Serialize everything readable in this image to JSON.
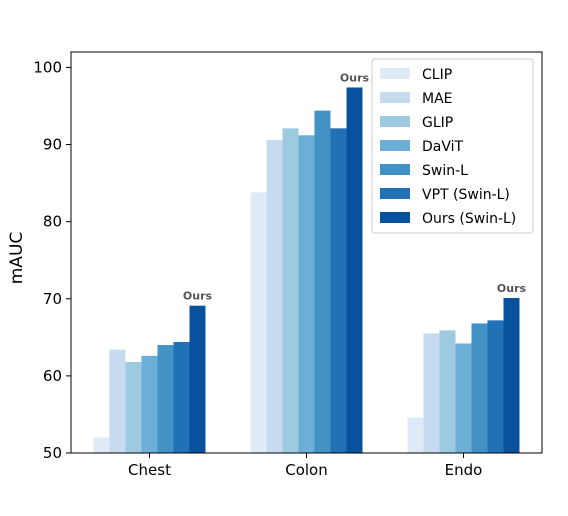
{
  "chart_data": {
    "type": "bar",
    "categories": [
      "Chest",
      "Colon",
      "Endo"
    ],
    "ylabel": "mAUC",
    "xlabel": "",
    "ylim": [
      50,
      102
    ],
    "yticks": [
      50,
      60,
      70,
      80,
      90,
      100
    ],
    "grid": false,
    "legend_position": "top-right",
    "series": [
      {
        "name": "CLIP",
        "color": "#deebf7",
        "values": [
          52.0,
          83.8,
          54.6
        ]
      },
      {
        "name": "MAE",
        "color": "#c6dbef",
        "values": [
          63.4,
          90.6,
          65.5
        ]
      },
      {
        "name": "GLIP",
        "color": "#9ecae1",
        "values": [
          61.8,
          92.1,
          65.9
        ]
      },
      {
        "name": "DaViT",
        "color": "#6baed6",
        "values": [
          62.6,
          91.2,
          64.2
        ]
      },
      {
        "name": "Swin-L",
        "color": "#4292c6",
        "values": [
          64.0,
          94.4,
          66.8
        ]
      },
      {
        "name": "VPT (Swin-L)",
        "color": "#2171b5",
        "values": [
          64.4,
          92.1,
          67.2
        ]
      },
      {
        "name": "Ours (Swin-L)",
        "color": "#08519c",
        "values": [
          69.1,
          97.4,
          70.1
        ]
      }
    ],
    "annotations": [
      {
        "text": "Ours",
        "category": "Chest",
        "series": "Ours (Swin-L)"
      },
      {
        "text": "Ours",
        "category": "Colon",
        "series": "Ours (Swin-L)"
      },
      {
        "text": "Ours",
        "category": "Endo",
        "series": "Ours (Swin-L)"
      }
    ]
  }
}
